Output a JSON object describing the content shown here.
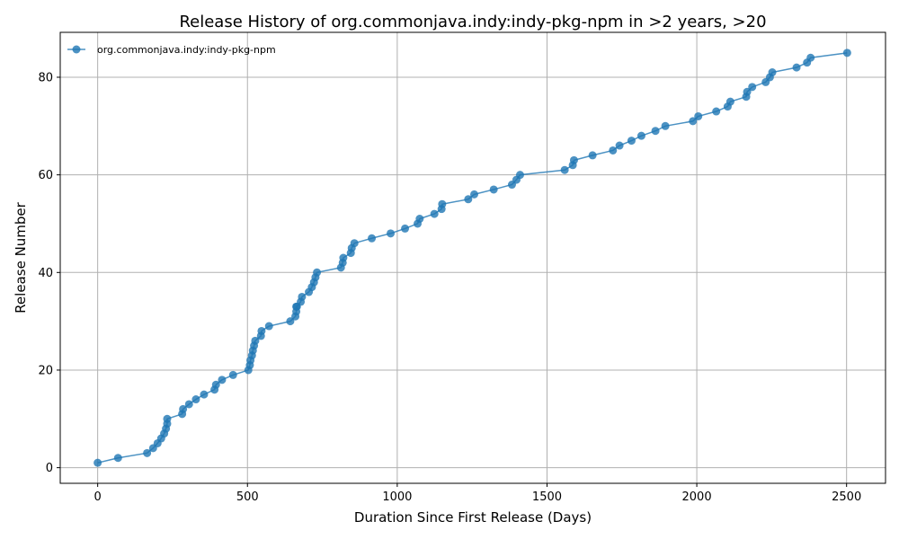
{
  "chart_data": {
    "type": "line",
    "title": "Release History of org.commonjava.indy:indy-pkg-npm in >2 years, >20",
    "xlabel": "Duration Since First Release (Days)",
    "ylabel": "Release Number",
    "xlim": [
      -125,
      2630
    ],
    "ylim": [
      -3.2,
      89.2
    ],
    "x_ticks": [
      0,
      500,
      1000,
      1500,
      2000,
      2500
    ],
    "y_ticks": [
      0,
      20,
      40,
      60,
      80
    ],
    "grid": true,
    "legend_position": "top-left",
    "series_color": "#1f77b4",
    "series": [
      {
        "name": "org.commonjava.indy:indy-pkg-npm",
        "x": [
          0,
          68,
          165,
          185,
          200,
          212,
          222,
          228,
          232,
          232,
          282,
          285,
          305,
          328,
          355,
          390,
          395,
          415,
          452,
          503,
          508,
          510,
          515,
          518,
          522,
          526,
          545,
          547,
          572,
          643,
          660,
          663,
          663,
          665,
          678,
          682,
          705,
          715,
          722,
          727,
          732,
          812,
          818,
          820,
          845,
          848,
          857,
          915,
          978,
          1026,
          1068,
          1075,
          1124,
          1148,
          1150,
          1237,
          1257,
          1322,
          1383,
          1398,
          1410,
          1559,
          1586,
          1590,
          1652,
          1720,
          1742,
          1782,
          1815,
          1862,
          1895,
          1987,
          2005,
          2065,
          2103,
          2112,
          2165,
          2168,
          2185,
          2230,
          2244,
          2252,
          2333,
          2368,
          2380,
          2502
        ],
        "y": [
          1,
          2,
          3,
          4,
          5,
          6,
          7,
          8,
          9,
          10,
          11,
          12,
          13,
          14,
          15,
          16,
          17,
          18,
          19,
          20,
          21,
          22,
          23,
          24,
          25,
          26,
          27,
          28,
          29,
          30,
          31,
          32,
          33,
          33,
          34,
          35,
          36,
          37,
          38,
          39,
          40,
          41,
          42,
          43,
          44,
          45,
          46,
          47,
          48,
          49,
          50,
          51,
          52,
          53,
          54,
          55,
          56,
          57,
          58,
          59,
          60,
          61,
          62,
          63,
          64,
          65,
          66,
          67,
          68,
          69,
          70,
          71,
          72,
          73,
          74,
          75,
          76,
          77,
          78,
          79,
          80,
          81,
          82,
          83,
          84,
          85
        ]
      }
    ]
  }
}
